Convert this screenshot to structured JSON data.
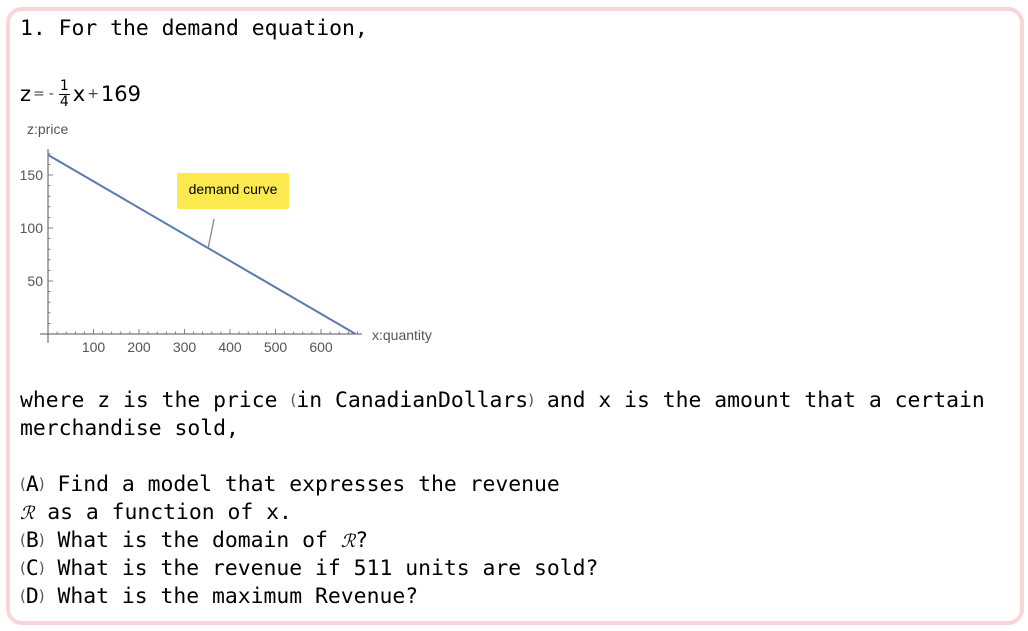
{
  "problem": {
    "heading": "1. For the demand equation,",
    "equation": {
      "lhs": "z",
      "eq": "=",
      "minus": "-",
      "frac_num": "1",
      "frac_den": "4",
      "var": "x",
      "plus": "+",
      "const": "169"
    },
    "where_line1_pre": "where z is the price ",
    "where_paren_open": "(",
    "where_units": "in CanadianDollars",
    "where_paren_close": ")",
    "where_line1_post": " and x is the amount that a certain",
    "where_line2": "merchandise sold,",
    "parts": [
      {
        "label": "A",
        "text": " Find a model that expresses the revenue"
      },
      {
        "label": "B",
        "text": " What is the domain of "
      },
      {
        "label": "C",
        "text": " What is the revenue if 511 units are sold?"
      },
      {
        "label": "D",
        "text": " What is the maximum Revenue?"
      }
    ],
    "part_a_line2": " as a function of x.",
    "part_b_suffix": "?",
    "revenue_symbol": "ℛ"
  },
  "chart_data": {
    "type": "line",
    "series": [
      {
        "x": [
          0,
          676
        ],
        "y": [
          169,
          0
        ]
      }
    ],
    "xlabel": "x:quantity",
    "ylabel": "z:price",
    "xticks": [
      100,
      200,
      300,
      400,
      500,
      600
    ],
    "yticks": [
      50,
      100,
      150
    ],
    "xlim": [
      0,
      690
    ],
    "ylim": [
      0,
      175
    ],
    "annotation": {
      "text": "demand curve",
      "x": 352,
      "y": 81
    },
    "line_color": "#5b7bb0",
    "label_bg": "#fce84f",
    "grid": false
  }
}
